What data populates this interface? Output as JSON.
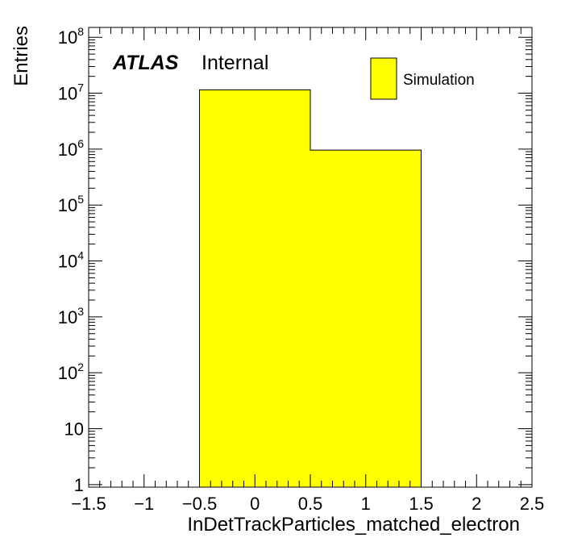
{
  "chart_data": {
    "type": "bar",
    "histogram": true,
    "bins": [
      {
        "low": -0.5,
        "high": 0.5,
        "value": 11500000
      },
      {
        "low": 0.5,
        "high": 1.5,
        "value": 960000
      }
    ],
    "xlabel": "InDetTrackParticles_matched_electron",
    "ylabel": "Entries",
    "xlim": [
      -1.5,
      2.5
    ],
    "ylim": [
      0.9,
      150000000
    ],
    "yscale": "log",
    "x_ticks": [
      "−1.5",
      "−1",
      "−0.5",
      "0",
      "0.5",
      "1",
      "1.5",
      "2",
      "2.5"
    ],
    "y_ticks": [
      {
        "base": "1",
        "exp": ""
      },
      {
        "base": "10",
        "exp": ""
      },
      {
        "base": "10",
        "exp": "2"
      },
      {
        "base": "10",
        "exp": "3"
      },
      {
        "base": "10",
        "exp": "4"
      },
      {
        "base": "10",
        "exp": "5"
      },
      {
        "base": "10",
        "exp": "6"
      },
      {
        "base": "10",
        "exp": "7"
      },
      {
        "base": "10",
        "exp": "8"
      }
    ],
    "series": [
      {
        "name": "Simulation",
        "color": "#ffff00"
      }
    ],
    "legend_position": "top-right",
    "annotation": {
      "bold": "ATLAS",
      "normal": "Internal"
    }
  }
}
